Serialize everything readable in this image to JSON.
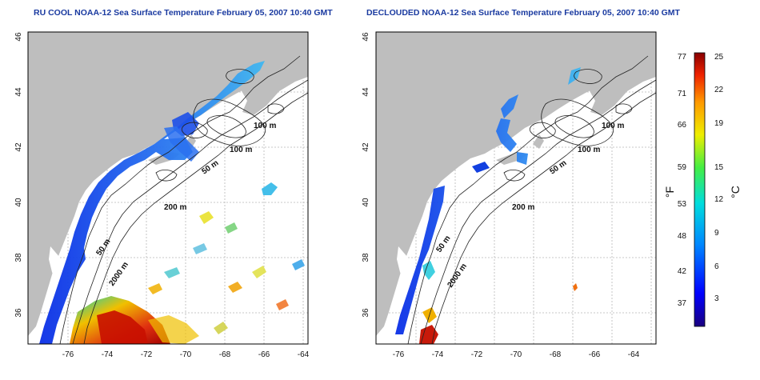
{
  "titles": {
    "left": "RU COOL NOAA-12 Sea Surface Temperature February 05, 2007 10:40 GMT",
    "right": "DECLOUDED NOAA-12 Sea Surface Temperature February 05, 2007 10:40 GMT"
  },
  "axes": {
    "longitude_ticks": [
      "-76",
      "-74",
      "-72",
      "-70",
      "-68",
      "-66",
      "-64"
    ],
    "latitude_ticks": [
      "46",
      "44",
      "42",
      "40",
      "38",
      "36"
    ]
  },
  "contour_labels": {
    "left": [
      "100 m",
      "100 m",
      "50 m",
      "200 m",
      "50 m",
      "2000 m"
    ],
    "right": [
      "100 m",
      "100 m",
      "50 m",
      "200 m",
      "50 m",
      "2000 m"
    ]
  },
  "colorbar": {
    "fahrenheit_ticks": [
      "77",
      "71",
      "66",
      "59",
      "53",
      "48",
      "42",
      "37"
    ],
    "celsius_ticks": [
      "25",
      "22",
      "19",
      "15",
      "12",
      "9",
      "6",
      "3"
    ],
    "fahrenheit_unit": "°F",
    "celsius_unit": "°C"
  },
  "colors": {
    "land": "#bebebe",
    "title": "#1a3aa0",
    "cold": "#1a3cff",
    "warm": "#d21a0a"
  }
}
